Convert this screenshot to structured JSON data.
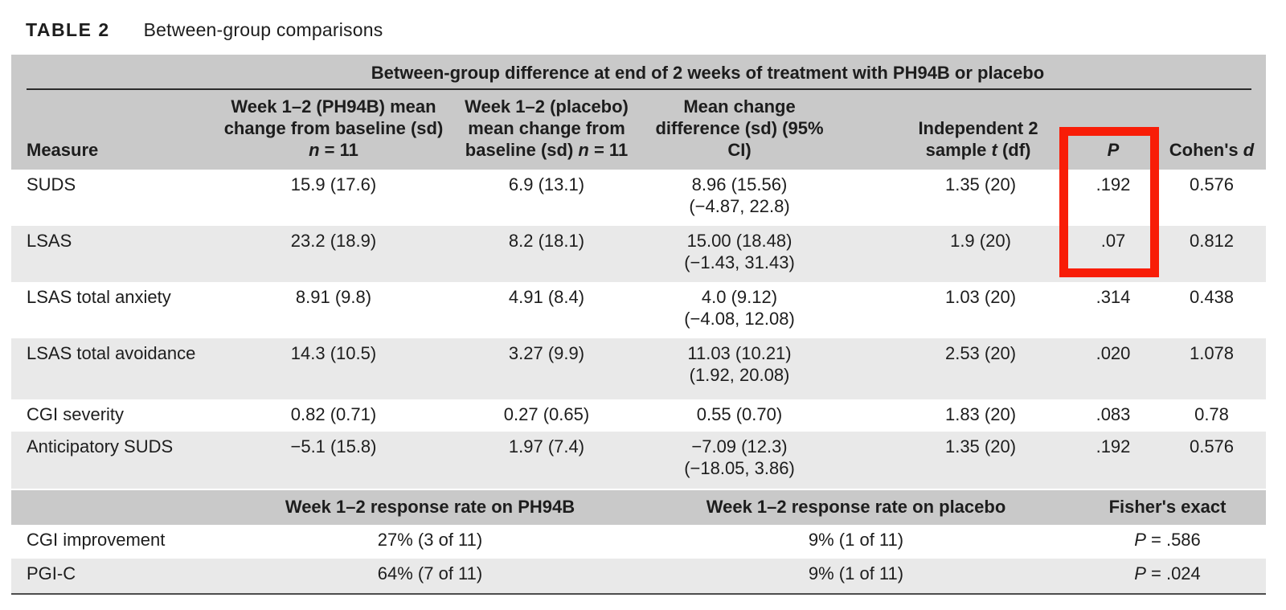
{
  "title": {
    "tag": "TABLE 2",
    "caption": "Between-group comparisons"
  },
  "colors": {
    "band": "#c9c9c9",
    "row_alt": "#e9e9e9",
    "highlight_red": "#f81d07"
  },
  "table": {
    "spanning_header": "Between-group difference at end of 2 weeks of treatment with PH94B or placebo",
    "headers": {
      "measure": "Measure",
      "ph94b_text": "Week 1–2 (PH94B) mean change from baseline (sd) ",
      "placebo_text": "Week 1–2 (placebo) mean change from baseline (sd) ",
      "n_italic": "n",
      "n_eq": " = 11",
      "diff": "Mean change difference (sd) (95% CI)",
      "indep_text": "Independent 2 sample ",
      "t_italic": "t",
      "t_suffix": " (df)",
      "p_italic": "P",
      "cohens_text": "Cohen's ",
      "d_italic": "d"
    },
    "main_rows": [
      {
        "measure": "SUDS",
        "ph94b": "15.9 (17.6)",
        "placebo": "6.9 (13.1)",
        "diff1": "8.96 (15.56)",
        "diff2": "(−4.87, 22.8)",
        "t": "1.35 (20)",
        "p": ".192",
        "d": "0.576"
      },
      {
        "measure": "LSAS",
        "ph94b": "23.2 (18.9)",
        "placebo": "8.2 (18.1)",
        "diff1": "15.00 (18.48)",
        "diff2": "(−1.43, 31.43)",
        "t": "1.9 (20)",
        "p": ".07",
        "d": "0.812"
      },
      {
        "measure": "LSAS total anxiety",
        "ph94b": "8.91 (9.8)",
        "placebo": "4.91 (8.4)",
        "diff1": "4.0 (9.12)",
        "diff2": "(−4.08, 12.08)",
        "t": "1.03 (20)",
        "p": ".314",
        "d": "0.438"
      },
      {
        "measure": "LSAS total avoidance",
        "ph94b": "14.3 (10.5)",
        "placebo": "3.27 (9.9)",
        "diff1": "11.03 (10.21)",
        "diff2": "(1.92, 20.08)",
        "t": "2.53 (20)",
        "p": ".020",
        "d": "1.078"
      },
      {
        "measure": "CGI severity",
        "ph94b": "0.82 (0.71)",
        "placebo": "0.27 (0.65)",
        "diff1": "0.55 (0.70)",
        "diff2": "",
        "t": "1.83 (20)",
        "p": ".083",
        "d": "0.78"
      },
      {
        "measure": "Anticipatory SUDS",
        "ph94b": "−5.1 (15.8)",
        "placebo": "1.97 (7.4)",
        "diff1": "−7.09 (12.3)",
        "diff2": "(−18.05, 3.86)",
        "t": "1.35 (20)",
        "p": ".192",
        "d": "0.576"
      }
    ],
    "bottom_headers": {
      "ph94b": "Week 1–2 response rate on PH94B",
      "placebo": "Week 1–2 response rate on placebo",
      "fisher": "Fisher's exact"
    },
    "bottom_rows": [
      {
        "measure": "CGI improvement",
        "ph94b": "27% (3 of 11)",
        "placebo": "9% (1 of 11)",
        "p_italic": "P",
        "p_value": " = .586"
      },
      {
        "measure": "PGI-C",
        "ph94b": "64% (7 of 11)",
        "placebo": "9% (1 of 11)",
        "p_italic": "P",
        "p_value": " = .024"
      }
    ]
  }
}
